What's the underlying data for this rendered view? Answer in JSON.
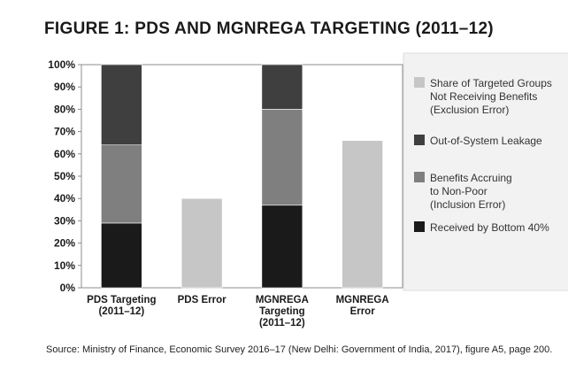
{
  "header": {
    "title": "FIGURE 1: PDS AND MGNREGA TARGETING (2011–12)"
  },
  "footer": {
    "source": "Source: Ministry of Finance, Economic Survey 2016–17 (New Delhi: Government of India, 2017), figure A5, page 200."
  },
  "chart_data": {
    "type": "bar",
    "stacked": true,
    "title": "FIGURE 1: PDS AND MGNREGA TARGETING (2011–12)",
    "xlabel": "",
    "ylabel": "",
    "ylim": [
      0,
      100
    ],
    "yticks": [
      "0%",
      "10%",
      "20%",
      "30%",
      "40%",
      "50%",
      "60%",
      "70%",
      "80%",
      "90%",
      "100%"
    ],
    "grid": false,
    "legend_position": "right",
    "categories": [
      [
        "PDS Targeting",
        "(2011–12)"
      ],
      [
        "PDS Error"
      ],
      [
        "MGNREGA",
        "Targeting",
        "(2011–12)"
      ],
      [
        "MGNREGA",
        "Error"
      ]
    ],
    "series": [
      {
        "name": "Received by Bottom 40%",
        "color": "#1a1a1a",
        "values": [
          29,
          0,
          37,
          0
        ]
      },
      {
        "name": "Benefits Accruing to Non-Poor (Inclusion Error)",
        "color": "#7f7f7f",
        "values": [
          35,
          0,
          43,
          0
        ]
      },
      {
        "name": "Out-of-System Leakage",
        "color": "#3f3f3f",
        "values": [
          36,
          0,
          20,
          0
        ]
      },
      {
        "name": "Share of Targeted Groups Not Receiving Benefits (Exclusion Error)",
        "color": "#c6c6c6",
        "values": [
          0,
          40,
          0,
          66
        ]
      }
    ],
    "legend": [
      {
        "lines": [
          "Share of Targeted Groups",
          "Not Receiving Benefits",
          "(Exclusion Error)"
        ],
        "color": "#c6c6c6"
      },
      {
        "lines": [
          "Out-of-System Leakage"
        ],
        "color": "#3f3f3f"
      },
      {
        "lines": [
          "Benefits Accruing",
          "to Non-Poor",
          "(Inclusion Error)"
        ],
        "color": "#7f7f7f"
      },
      {
        "lines": [
          "Received by Bottom 40%"
        ],
        "color": "#1a1a1a"
      }
    ]
  }
}
